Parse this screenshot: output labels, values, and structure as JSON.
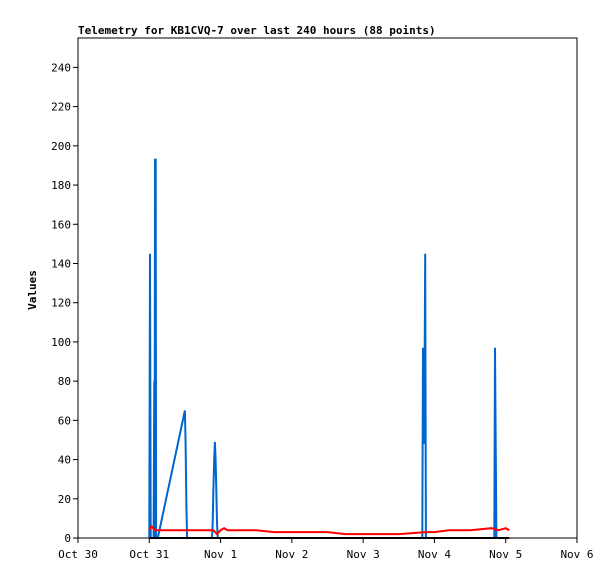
{
  "chart_data": {
    "type": "line",
    "title": "Telemetry for KB1CVQ-7 over last 240 hours (88 points)",
    "xlabel": "",
    "ylabel": "Values",
    "x_ticks": [
      "Oct 30",
      "Oct 31",
      "Nov 1",
      "Nov 2",
      "Nov 3",
      "Nov 4",
      "Nov 5",
      "Nov 6"
    ],
    "xlim": [
      0,
      7
    ],
    "ylim": [
      0,
      255
    ],
    "y_ticks": [
      0,
      20,
      40,
      60,
      80,
      100,
      120,
      140,
      160,
      180,
      200,
      220,
      240
    ],
    "grid": false,
    "series": [
      {
        "color": "#0066cc",
        "points": [
          [
            1.0,
            0
          ],
          [
            1.01,
            145
          ],
          [
            1.02,
            0
          ],
          [
            1.06,
            0
          ],
          [
            1.07,
            80
          ],
          [
            1.075,
            0
          ],
          [
            1.08,
            193
          ],
          [
            1.09,
            193
          ],
          [
            1.095,
            0
          ],
          [
            1.12,
            0
          ],
          [
            1.5,
            65
          ],
          [
            1.51,
            48
          ],
          [
            1.52,
            16
          ],
          [
            1.53,
            0
          ],
          [
            1.88,
            0
          ],
          [
            1.89,
            8
          ],
          [
            1.9,
            25
          ],
          [
            1.91,
            40
          ],
          [
            1.92,
            49
          ],
          [
            1.93,
            40
          ],
          [
            1.94,
            25
          ],
          [
            1.95,
            8
          ],
          [
            1.96,
            0
          ],
          [
            4.83,
            0
          ],
          [
            4.84,
            97
          ],
          [
            4.85,
            48
          ],
          [
            4.86,
            65
          ],
          [
            4.87,
            145
          ],
          [
            4.88,
            0
          ],
          [
            4.93,
            0
          ],
          [
            5.84,
            0
          ],
          [
            5.85,
            97
          ],
          [
            5.86,
            48
          ],
          [
            5.87,
            0
          ]
        ]
      },
      {
        "color": "#ff0000",
        "points": [
          [
            1.0,
            4
          ],
          [
            1.03,
            6
          ],
          [
            1.08,
            4
          ],
          [
            1.5,
            4
          ],
          [
            1.9,
            4
          ],
          [
            1.95,
            2
          ],
          [
            2.0,
            4
          ],
          [
            2.05,
            5
          ],
          [
            2.1,
            4
          ],
          [
            2.5,
            4
          ],
          [
            2.75,
            3
          ],
          [
            3.0,
            3
          ],
          [
            3.5,
            3
          ],
          [
            3.75,
            2
          ],
          [
            4.0,
            2
          ],
          [
            4.5,
            2
          ],
          [
            4.88,
            3
          ],
          [
            4.95,
            3
          ],
          [
            5.0,
            3
          ],
          [
            5.2,
            4
          ],
          [
            5.5,
            4
          ],
          [
            5.8,
            5
          ],
          [
            5.9,
            4
          ],
          [
            6.0,
            5
          ],
          [
            6.05,
            4
          ]
        ]
      },
      {
        "color": "#000000",
        "points": [
          [
            1.0,
            0
          ],
          [
            6.05,
            0
          ]
        ]
      }
    ]
  }
}
